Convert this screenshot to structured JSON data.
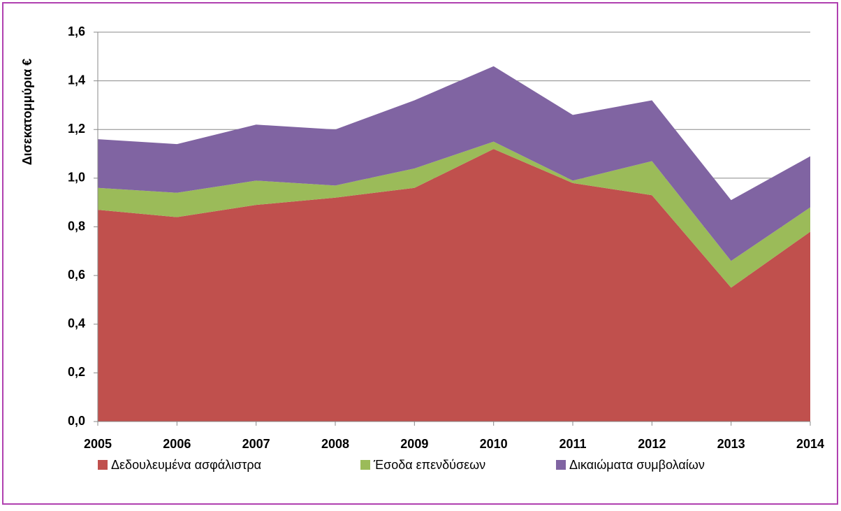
{
  "chart_data": {
    "type": "stacked_area",
    "y_label": "Δισεκατομμύρια €",
    "categories": [
      "2005",
      "2006",
      "2007",
      "2008",
      "2009",
      "2010",
      "2011",
      "2012",
      "2013",
      "2014"
    ],
    "series": [
      {
        "name": "Δεδουλευμένα ασφάλιστρα",
        "color": "#c0504d",
        "values": [
          0.87,
          0.84,
          0.89,
          0.92,
          0.96,
          1.12,
          0.98,
          0.93,
          0.55,
          0.78
        ]
      },
      {
        "name": "Έσοδα επενδύσεων",
        "color": "#9bbb59",
        "values": [
          0.09,
          0.1,
          0.1,
          0.05,
          0.08,
          0.03,
          0.01,
          0.14,
          0.11,
          0.1
        ]
      },
      {
        "name": "Δικαιώματα συμβολαίων",
        "color": "#8064a2",
        "values": [
          0.2,
          0.2,
          0.23,
          0.23,
          0.28,
          0.31,
          0.27,
          0.25,
          0.25,
          0.21
        ]
      }
    ],
    "ylim": [
      0,
      1.6
    ],
    "yticks": [
      {
        "value": 0,
        "label": "0,0"
      },
      {
        "value": 0.2,
        "label": "0,2"
      },
      {
        "value": 0.4,
        "label": "0,4"
      },
      {
        "value": 0.6,
        "label": "0,6"
      },
      {
        "value": 0.8,
        "label": "0,8"
      },
      {
        "value": 1.0,
        "label": "1,0"
      },
      {
        "value": 1.2,
        "label": "1,2"
      },
      {
        "value": 1.4,
        "label": "1,4"
      },
      {
        "value": 1.6,
        "label": "1,6"
      }
    ],
    "grid": true,
    "legend": "bottom"
  }
}
